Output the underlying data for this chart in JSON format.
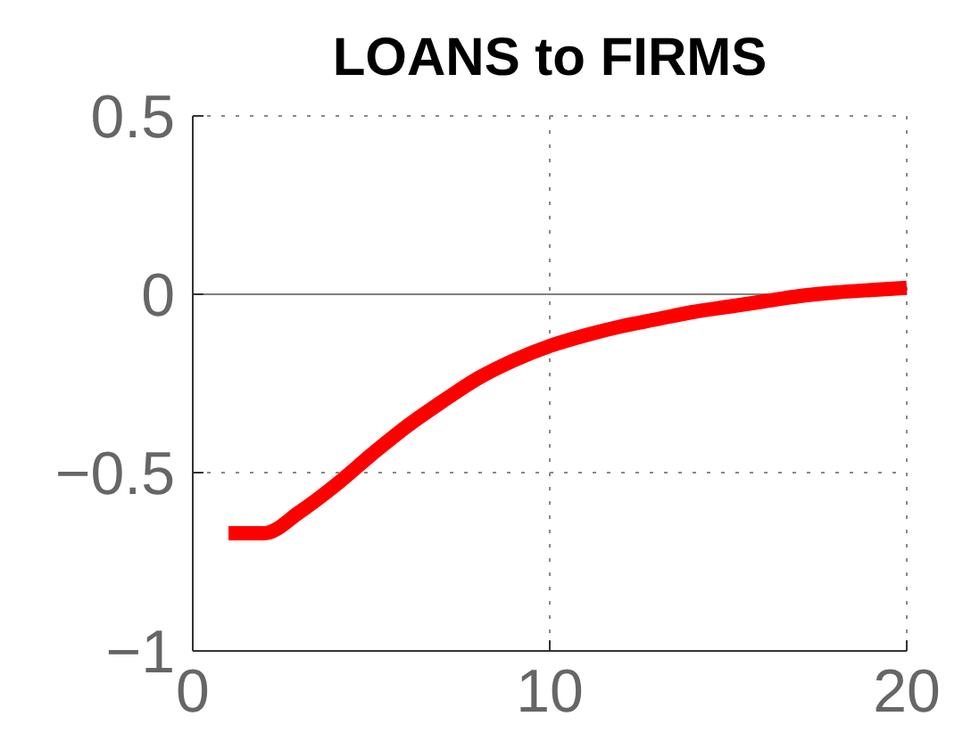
{
  "chart_data": {
    "type": "line",
    "title": "LOANS to FIRMS",
    "x": [
      1,
      2,
      3,
      4,
      5,
      6,
      7,
      8,
      9,
      10,
      11,
      12,
      13,
      14,
      15,
      16,
      17,
      18,
      19,
      20
    ],
    "series": [
      {
        "color": "#ff0000",
        "values": [
          -0.67,
          -0.67,
          -0.61,
          -0.535,
          -0.45,
          -0.37,
          -0.3,
          -0.235,
          -0.185,
          -0.145,
          -0.115,
          -0.09,
          -0.07,
          -0.05,
          -0.035,
          -0.02,
          -0.005,
          0.005,
          0.012,
          0.018
        ]
      }
    ],
    "xlim": [
      0,
      20
    ],
    "xticks": [
      0,
      10,
      20
    ],
    "ylim": [
      -1,
      0.5
    ],
    "yticks": [
      {
        "value": -1,
        "label": "−1"
      },
      {
        "value": -0.5,
        "label": "−0.5"
      },
      0,
      0.5
    ],
    "grid": true,
    "line_style": "solid",
    "marker": "none",
    "ref_lines": [
      {
        "axis": "y",
        "value": 0,
        "label": null,
        "color": "#808080"
      }
    ]
  }
}
